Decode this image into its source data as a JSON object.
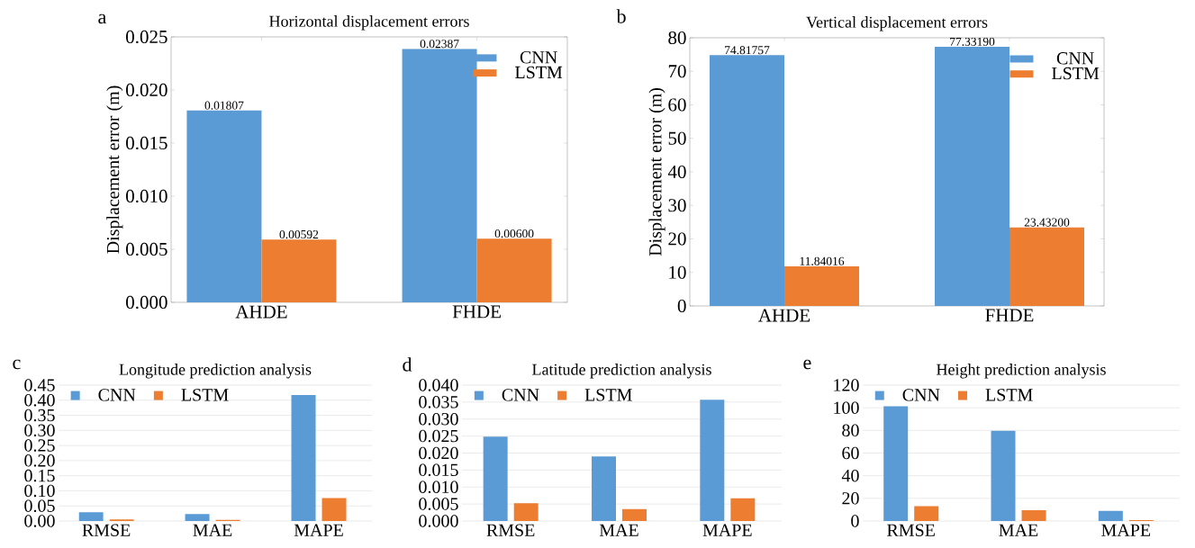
{
  "chart_data": [
    {
      "type": "bar",
      "title": "Horizontal displacement errors",
      "ylabel": "Displacement error (m)",
      "annotations": [
        "a"
      ],
      "categories": [
        "AHDE",
        "FHDE"
      ],
      "series": [
        {
          "name": "CNN",
          "color": "#5b9bd5",
          "values": [
            0.01807,
            0.02387
          ],
          "value_labels": [
            "0.01807",
            "0.02387"
          ]
        },
        {
          "name": "LSTM",
          "color": "#ed7d31",
          "values": [
            0.00592,
            0.006
          ],
          "value_labels": [
            "0.00592",
            "0.00600"
          ]
        }
      ],
      "ylim": [
        0,
        0.025
      ],
      "yticks": [
        {
          "value": 0,
          "label": "0.000"
        },
        {
          "value": 0.005,
          "label": "0.005"
        },
        {
          "value": 0.01,
          "label": "0.010"
        },
        {
          "value": 0.015,
          "label": "0.015"
        },
        {
          "value": 0.02,
          "label": "0.020"
        },
        {
          "value": 0.025,
          "label": "0.025"
        }
      ],
      "legend": "top right"
    },
    {
      "type": "bar",
      "title": "Vertical displacement errors",
      "ylabel": "Displacement error (m)",
      "annotations": [
        "b"
      ],
      "categories": [
        "AHDE",
        "FHDE"
      ],
      "series": [
        {
          "name": "CNN",
          "color": "#5b9bd5",
          "values": [
            74.81757,
            77.3319
          ],
          "value_labels": [
            "74.81757",
            "77.33190"
          ]
        },
        {
          "name": "LSTM",
          "color": "#ed7d31",
          "values": [
            11.84016,
            23.432
          ],
          "value_labels": [
            "11.84016",
            "23.43200"
          ]
        }
      ],
      "ylim": [
        0,
        80
      ],
      "yticks": [
        0,
        10,
        20,
        30,
        40,
        50,
        60,
        70,
        80
      ],
      "legend": "top right"
    },
    {
      "type": "bar",
      "title": "Longitude prediction analysis",
      "annotations": [
        "c"
      ],
      "categories": [
        "RMSE",
        "MAE",
        "MAPE"
      ],
      "series": [
        {
          "name": "CNN",
          "color": "#5b9bd5",
          "values": [
            0.029,
            0.023,
            0.417
          ]
        },
        {
          "name": "LSTM",
          "color": "#ed7d31",
          "values": [
            0.005,
            0.004,
            0.076
          ]
        }
      ],
      "ylim": [
        0,
        0.45
      ],
      "yticks": [
        {
          "value": 0,
          "label": "0.00"
        },
        {
          "value": 0.05,
          "label": "0.05"
        },
        {
          "value": 0.1,
          "label": "0.10"
        },
        {
          "value": 0.15,
          "label": "0.15"
        },
        {
          "value": 0.2,
          "label": "0.20"
        },
        {
          "value": 0.25,
          "label": "0.25"
        },
        {
          "value": 0.3,
          "label": "0.30"
        },
        {
          "value": 0.35,
          "label": "0.35"
        },
        {
          "value": 0.4,
          "label": "0.40"
        },
        {
          "value": 0.45,
          "label": "0.45"
        }
      ],
      "grid": "y",
      "legend": "top left"
    },
    {
      "type": "bar",
      "title": "Latitude prediction analysis",
      "annotations": [
        "d"
      ],
      "categories": [
        "RMSE",
        "MAE",
        "MAPE"
      ],
      "series": [
        {
          "name": "CNN",
          "color": "#5b9bd5",
          "values": [
            0.0248,
            0.019,
            0.0357
          ]
        },
        {
          "name": "LSTM",
          "color": "#ed7d31",
          "values": [
            0.0052,
            0.0035,
            0.0067
          ]
        }
      ],
      "ylim": [
        0,
        0.04
      ],
      "yticks": [
        {
          "value": 0,
          "label": "0.000"
        },
        {
          "value": 0.005,
          "label": "0.005"
        },
        {
          "value": 0.01,
          "label": "0.010"
        },
        {
          "value": 0.015,
          "label": "0.015"
        },
        {
          "value": 0.02,
          "label": "0.020"
        },
        {
          "value": 0.025,
          "label": "0.025"
        },
        {
          "value": 0.03,
          "label": "0.030"
        },
        {
          "value": 0.035,
          "label": "0.035"
        },
        {
          "value": 0.04,
          "label": "0.040"
        }
      ],
      "grid": "y",
      "legend": "top left"
    },
    {
      "type": "bar",
      "title": "Height prediction analysis",
      "annotations": [
        "e"
      ],
      "categories": [
        "RMSE",
        "MAE",
        "MAPE"
      ],
      "series": [
        {
          "name": "CNN",
          "color": "#5b9bd5",
          "values": [
            101.3,
            79.6,
            9
          ]
        },
        {
          "name": "LSTM",
          "color": "#ed7d31",
          "values": [
            13.2,
            9.5,
            0.8
          ]
        }
      ],
      "ylim": [
        0,
        120
      ],
      "yticks": [
        0,
        20,
        40,
        60,
        80,
        100,
        120
      ],
      "grid": "y",
      "legend": "top left"
    }
  ]
}
